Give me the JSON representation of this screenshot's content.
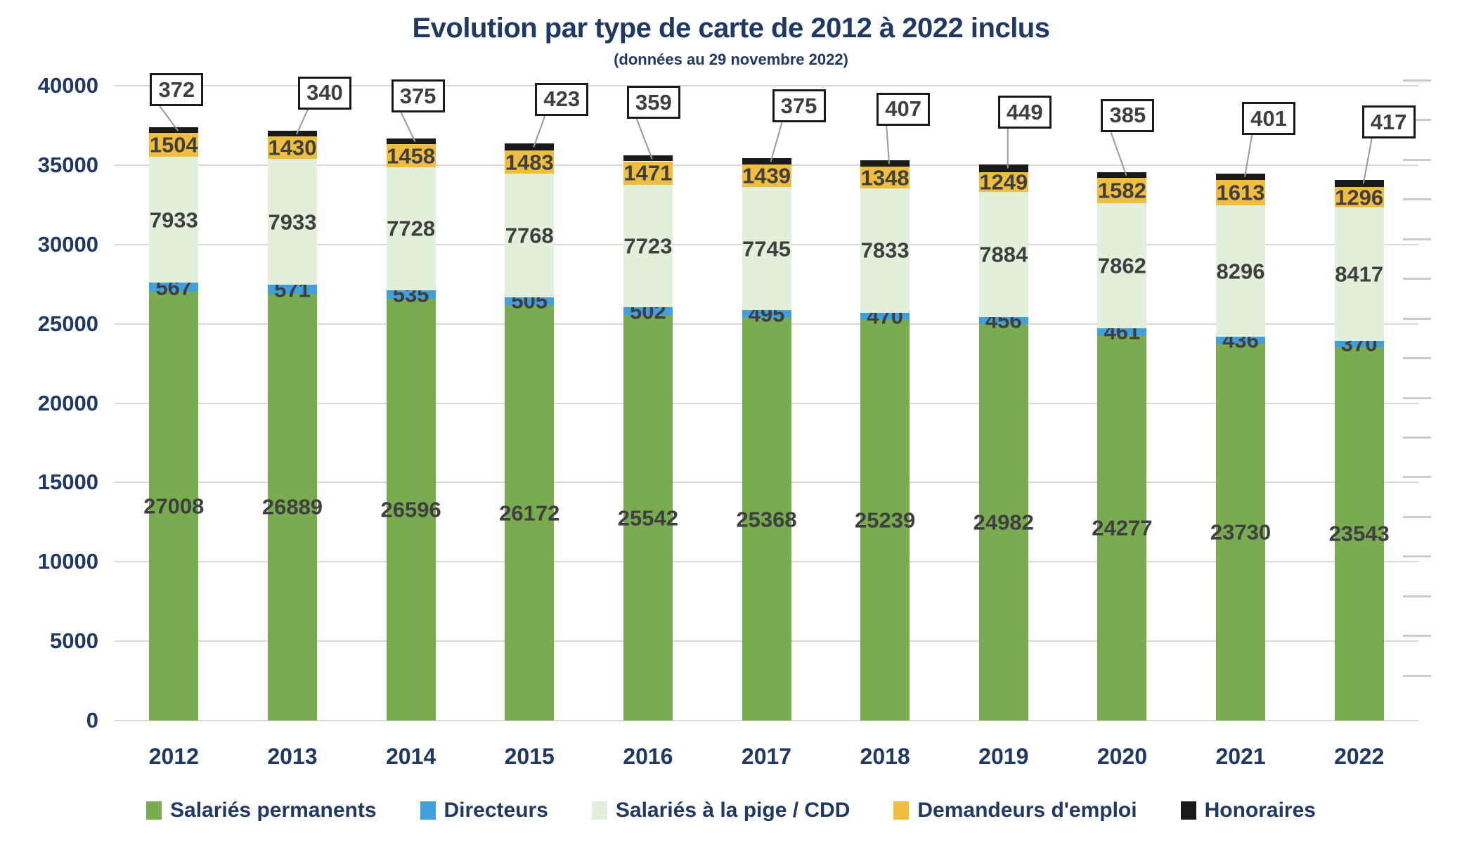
{
  "chart_data": {
    "type": "bar",
    "stacked": true,
    "title": "Evolution par type de carte de 2012 à 2022 inclus",
    "subtitle": "(données au 29 novembre 2022)",
    "categories": [
      "2012",
      "2013",
      "2014",
      "2015",
      "2016",
      "2017",
      "2018",
      "2019",
      "2020",
      "2021",
      "2022"
    ],
    "series": [
      {
        "name": "Salariés permanents",
        "color": "#79AC51",
        "label_color": "#3F3F3F",
        "values": [
          27008,
          26889,
          26596,
          26172,
          25542,
          25368,
          25239,
          24982,
          24277,
          23730,
          23543
        ]
      },
      {
        "name": "Directeurs",
        "color": "#41A0DC",
        "label_color": "#3F3F3F",
        "values": [
          567,
          571,
          535,
          505,
          502,
          495,
          470,
          456,
          461,
          436,
          370
        ]
      },
      {
        "name": "Salariés à la pige / CDD",
        "color": "#E2EFDA",
        "label_color": "#3F3F3F",
        "values": [
          7933,
          7933,
          7728,
          7768,
          7723,
          7745,
          7833,
          7884,
          7862,
          8296,
          8417
        ]
      },
      {
        "name": "Demandeurs d'emploi",
        "color": "#EFBE41",
        "label_color": "#3F3F3F",
        "values": [
          1504,
          1430,
          1458,
          1483,
          1471,
          1439,
          1348,
          1249,
          1582,
          1613,
          1296
        ]
      },
      {
        "name": "Honoraires",
        "color": "#1A1A1A",
        "label_color": "#3F3F3F",
        "label_style": "callout",
        "values": [
          372,
          340,
          375,
          423,
          359,
          375,
          407,
          449,
          385,
          401,
          417
        ]
      }
    ],
    "ylim": [
      0,
      40000
    ],
    "ytick_step": 5000,
    "yticks": [
      "0",
      "5000",
      "10000",
      "15000",
      "20000",
      "25000",
      "30000",
      "35000",
      "40000"
    ],
    "grid": true,
    "legend_position": "bottom"
  },
  "colors": {
    "title_text": "#1F3864",
    "axis_text": "#1F3864",
    "data_label_text": "#3F3F3F",
    "gridline": "#D9D9D9",
    "callout_border": "#1A1A1A",
    "callout_leader": "#999999",
    "background": "#FFFFFF"
  }
}
